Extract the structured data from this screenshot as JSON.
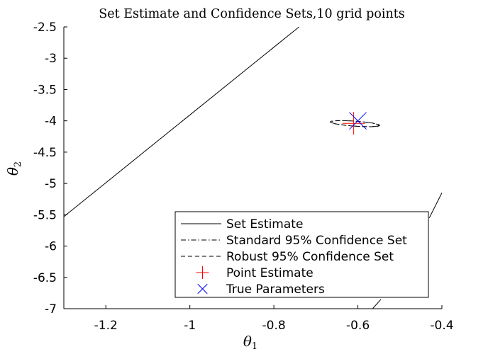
{
  "chart_data": {
    "type": "line",
    "title": "Set Estimate and Confidence Sets,10 grid points",
    "xlabel": "θ1",
    "xlabel_main": "θ",
    "xlabel_sub": "1",
    "ylabel": "θ2",
    "ylabel_main": "θ",
    "ylabel_sub": "2",
    "xlim": [
      -1.3,
      -0.4
    ],
    "ylim": [
      -7,
      -2.5
    ],
    "xticks": [
      -1.2,
      -1,
      -0.8,
      -0.6,
      -0.4
    ],
    "xtick_labels": [
      "-1.2",
      "-1",
      "-0.8",
      "-0.6",
      "-0.4"
    ],
    "yticks": [
      -2.5,
      -3,
      -3.5,
      -4,
      -4.5,
      -5,
      -5.5,
      -6,
      -6.5,
      -7
    ],
    "ytick_labels": [
      "-2.5",
      "-3",
      "-3.5",
      "-4",
      "-4.5",
      "-5",
      "-5.5",
      "-6",
      "-6.5",
      "-7"
    ],
    "grid": false,
    "legend_position": "bottom-right",
    "series": [
      {
        "name": "Set Estimate",
        "style": "solid",
        "color": "#000000",
        "segments": [
          [
            [
              -1.3,
              -5.53
            ],
            [
              -0.74,
              -2.5
            ]
          ],
          [
            [
              -0.565,
              -7.0
            ],
            [
              -0.545,
              -6.85
            ]
          ],
          [
            [
              -0.43,
              -5.55
            ],
            [
              -0.4,
              -5.15
            ]
          ]
        ]
      },
      {
        "name": "Standard 95% Confidence Set",
        "style": "dashdot",
        "color": "#000000",
        "ellipse": {
          "cx": -0.607,
          "cy": -4.045,
          "rx": 0.066,
          "ry": 0.034,
          "angle_deg": -36
        }
      },
      {
        "name": "Robust 95% Confidence Set",
        "style": "dashed",
        "color": "#000000",
        "ellipse": {
          "cx": -0.607,
          "cy": -4.045,
          "rx": 0.068,
          "ry": 0.035,
          "angle_deg": -36
        }
      },
      {
        "name": "Point Estimate",
        "marker": "+",
        "color": "#ff0000",
        "points": [
          [
            -0.61,
            -4.04
          ]
        ]
      },
      {
        "name": "True Parameters",
        "marker": "x",
        "color": "#0000ff",
        "points": [
          [
            -0.6,
            -4.0
          ]
        ]
      }
    ]
  }
}
